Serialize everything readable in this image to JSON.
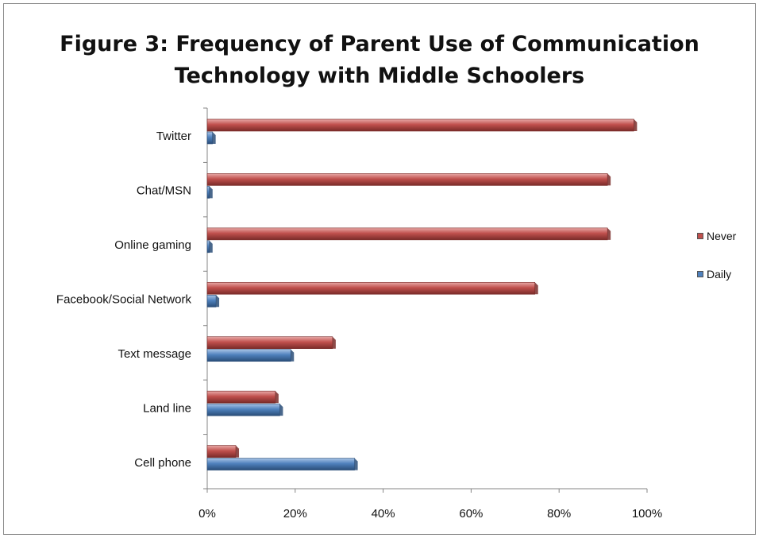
{
  "chart_data": {
    "type": "bar",
    "orientation": "horizontal",
    "title_lines": [
      "Figure 3:  Frequency of Parent Use of Communication",
      "Technology with Middle Schoolers"
    ],
    "categories": [
      "Cell phone",
      "Land line",
      "Text message",
      "Facebook/Social Network",
      "Online gaming",
      "Chat/MSN",
      "Twitter"
    ],
    "series": [
      {
        "name": "Never",
        "color": "#c0504d",
        "values": [
          6.5,
          15.5,
          28.5,
          74.5,
          91,
          91,
          97
        ]
      },
      {
        "name": "Daily",
        "color": "#4f81bd",
        "values": [
          33.5,
          16.5,
          19,
          2,
          0.5,
          0.5,
          1.2
        ]
      }
    ],
    "xlim": [
      0,
      100
    ],
    "xticks": [
      "0%",
      "20%",
      "40%",
      "60%",
      "80%",
      "100%"
    ],
    "legend_position": "right",
    "grid": false
  }
}
